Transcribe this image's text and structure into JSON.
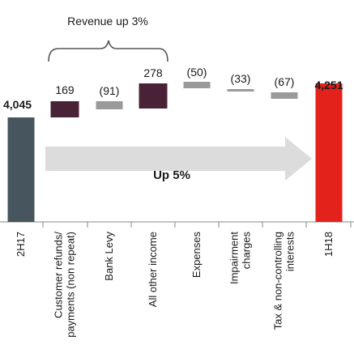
{
  "chart_data": {
    "type": "waterfall",
    "categories": [
      "2H17",
      [
        "Customer refunds/",
        "payments (non repeat)"
      ],
      "Bank Levy",
      "All other income",
      "Expenses",
      [
        "Impairment",
        "charges"
      ],
      [
        "Tax & non-controlling",
        "interests"
      ],
      "1H18"
    ],
    "value_labels": [
      "4,045",
      "169",
      "(91)",
      "278",
      "(50)",
      "(33)",
      "(67)",
      "4,251"
    ],
    "steps": [
      {
        "kind": "total",
        "value": 4045,
        "color": "#47555e"
      },
      {
        "kind": "delta",
        "value": 169,
        "color": "#4a2238"
      },
      {
        "kind": "delta",
        "value": -91,
        "color": "#9a9a9a"
      },
      {
        "kind": "delta",
        "value": 278,
        "color": "#4a2238"
      },
      {
        "kind": "delta",
        "value": -50,
        "color": "#9a9a9a"
      },
      {
        "kind": "delta",
        "value": -33,
        "color": "#9a9a9a"
      },
      {
        "kind": "delta",
        "value": -67,
        "color": "#9a9a9a"
      },
      {
        "kind": "total",
        "value": 4251,
        "color": "#e3231b"
      }
    ],
    "annotations": {
      "bracket_label": "Revenue up 3%",
      "arrow_label": "Up 5%"
    }
  }
}
